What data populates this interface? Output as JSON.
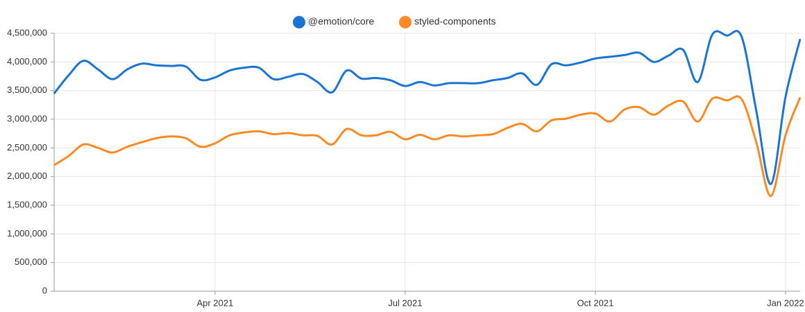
{
  "chart_data": {
    "type": "line",
    "categories": [
      null,
      null,
      null,
      null,
      null,
      null,
      null,
      null,
      null,
      null,
      null,
      "Apr 2021",
      null,
      null,
      null,
      null,
      null,
      null,
      null,
      null,
      null,
      null,
      null,
      null,
      "Jul 2021",
      null,
      null,
      null,
      null,
      null,
      null,
      null,
      null,
      null,
      null,
      null,
      null,
      "Oct 2021",
      null,
      null,
      null,
      null,
      null,
      null,
      null,
      null,
      null,
      null,
      null,
      null,
      "Jan 2022",
      null
    ],
    "series": [
      {
        "name": "@emotion/core",
        "color": "#1a75d2",
        "values": [
          3450000,
          3770000,
          4020000,
          3870000,
          3700000,
          3870000,
          3970000,
          3940000,
          3930000,
          3920000,
          3690000,
          3730000,
          3850000,
          3900000,
          3900000,
          3700000,
          3740000,
          3790000,
          3650000,
          3470000,
          3850000,
          3710000,
          3720000,
          3680000,
          3580000,
          3650000,
          3590000,
          3630000,
          3630000,
          3630000,
          3680000,
          3720000,
          3800000,
          3600000,
          3960000,
          3940000,
          3990000,
          4060000,
          4090000,
          4120000,
          4160000,
          4000000,
          4110000,
          4210000,
          3650000,
          4480000,
          4460000,
          4440000,
          3150000,
          1870000,
          3390000,
          4400000
        ]
      },
      {
        "name": "styled-components",
        "color": "#fb8a24",
        "values": [
          2200000,
          2360000,
          2560000,
          2500000,
          2420000,
          2520000,
          2600000,
          2670000,
          2700000,
          2670000,
          2520000,
          2580000,
          2720000,
          2770000,
          2790000,
          2740000,
          2760000,
          2720000,
          2710000,
          2560000,
          2830000,
          2720000,
          2720000,
          2780000,
          2650000,
          2730000,
          2650000,
          2720000,
          2700000,
          2720000,
          2740000,
          2850000,
          2920000,
          2790000,
          2980000,
          3010000,
          3080000,
          3100000,
          2960000,
          3170000,
          3210000,
          3080000,
          3240000,
          3310000,
          2960000,
          3360000,
          3330000,
          3350000,
          2600000,
          1660000,
          2720000,
          3380000
        ]
      }
    ],
    "ylim": [
      0,
      4500000
    ],
    "yticks": [
      0,
      {
        "value": 500000,
        "label": "500,000"
      },
      {
        "value": 1000000,
        "label": "1,000,000"
      },
      {
        "value": 1500000,
        "label": "1,500,000"
      },
      {
        "value": 2000000,
        "label": "2,000,000"
      },
      {
        "value": 2500000,
        "label": "2,500,000"
      },
      {
        "value": 3000000,
        "label": "3,000,000"
      },
      {
        "value": 3500000,
        "label": "3,500,000"
      },
      {
        "value": 4000000,
        "label": "4,000,000"
      },
      {
        "value": 4500000,
        "label": "4,500,000"
      }
    ],
    "grid": true,
    "legend": "top"
  }
}
